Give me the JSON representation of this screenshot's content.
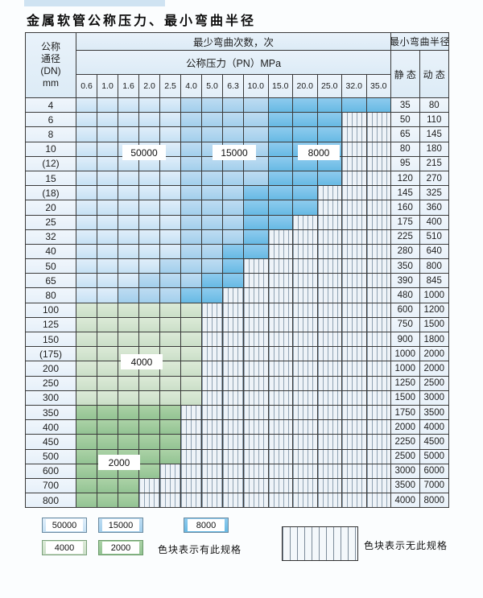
{
  "title": "金属软管公称压力、最小弯曲半径",
  "table": {
    "corner": {
      "line1": "公称",
      "line2": "通径",
      "line3": "(DN)",
      "line4": "mm"
    },
    "bend_header": "最少弯曲次数，次",
    "radius_header": "最小弯曲半径",
    "pressure_header": "公称压力（PN）MPa",
    "static_label": "静 态",
    "dynamic_label": "动 态",
    "pressures": [
      "0.6",
      "1.0",
      "1.6",
      "2.0",
      "2.5",
      "4.0",
      "5.0",
      "6.3",
      "10.0",
      "15.0",
      "20.0",
      "25.0",
      "32.0",
      "35.0"
    ],
    "zone_legend_note": "cells string: A=50000 zone, B=15000 zone, C=8000 zone, g=4000 zone, G=2000 zone, -=no spec (hatched)",
    "rows": [
      {
        "dn": "4",
        "cells": "AAAAABBBBCCCCC",
        "static": "35",
        "dynamic": "80"
      },
      {
        "dn": "6",
        "cells": "AAAAABBBBCCC--",
        "static": "50",
        "dynamic": "110"
      },
      {
        "dn": "8",
        "cells": "AAAAABBBBCCC--",
        "static": "65",
        "dynamic": "145"
      },
      {
        "dn": "10",
        "cells": "AAAAABBBBCCC--",
        "static": "80",
        "dynamic": "180"
      },
      {
        "dn": "(12)",
        "cells": "AAAAABBBBCCC--",
        "static": "95",
        "dynamic": "215"
      },
      {
        "dn": "15",
        "cells": "AAAAABBBBCCC--",
        "static": "120",
        "dynamic": "270"
      },
      {
        "dn": "(18)",
        "cells": "AAAAABBBCCC---",
        "static": "145",
        "dynamic": "325"
      },
      {
        "dn": "20",
        "cells": "AAAAABBBCCC---",
        "static": "160",
        "dynamic": "360"
      },
      {
        "dn": "25",
        "cells": "AAAAABBBCC----",
        "static": "175",
        "dynamic": "400"
      },
      {
        "dn": "32",
        "cells": "AAAAABBBC-----",
        "static": "225",
        "dynamic": "510"
      },
      {
        "dn": "40",
        "cells": "AAAAABBCC-----",
        "static": "280",
        "dynamic": "640"
      },
      {
        "dn": "50",
        "cells": "AAAABBBC------",
        "static": "350",
        "dynamic": "800"
      },
      {
        "dn": "65",
        "cells": "AAABBBCC------",
        "static": "390",
        "dynamic": "845"
      },
      {
        "dn": "80",
        "cells": "AABBBCC-------",
        "static": "480",
        "dynamic": "1000"
      },
      {
        "dn": "100",
        "cells": "gggggg--------",
        "static": "600",
        "dynamic": "1200"
      },
      {
        "dn": "125",
        "cells": "gggggg--------",
        "static": "750",
        "dynamic": "1500"
      },
      {
        "dn": "150",
        "cells": "gggggg--------",
        "static": "900",
        "dynamic": "1800"
      },
      {
        "dn": "(175)",
        "cells": "gggggg--------",
        "static": "1000",
        "dynamic": "2000"
      },
      {
        "dn": "200",
        "cells": "gggggg--------",
        "static": "1000",
        "dynamic": "2000"
      },
      {
        "dn": "250",
        "cells": "gggggg--------",
        "static": "1250",
        "dynamic": "2500"
      },
      {
        "dn": "300",
        "cells": "gggggg--------",
        "static": "1500",
        "dynamic": "3000"
      },
      {
        "dn": "350",
        "cells": "GGGGG---------",
        "static": "1750",
        "dynamic": "3500"
      },
      {
        "dn": "400",
        "cells": "GGGGG---------",
        "static": "2000",
        "dynamic": "4000"
      },
      {
        "dn": "450",
        "cells": "GGGGG---------",
        "static": "2250",
        "dynamic": "4500"
      },
      {
        "dn": "500",
        "cells": "GGGGG---------",
        "static": "2500",
        "dynamic": "5000"
      },
      {
        "dn": "600",
        "cells": "GGGG----------",
        "static": "3000",
        "dynamic": "6000"
      },
      {
        "dn": "700",
        "cells": "GGG-----------",
        "static": "3500",
        "dynamic": "7000"
      },
      {
        "dn": "800",
        "cells": "GGG-----------",
        "static": "4000",
        "dynamic": "8000"
      }
    ]
  },
  "zone_colors": {
    "cycles_50000": "#c6e1f4",
    "cycles_15000": "#a2cfec",
    "cycles_8000": "#67bae4",
    "cycles_4000": "#cbdfc8",
    "cycles_2000": "#93c393"
  },
  "legend": {
    "items": [
      {
        "label": "50000"
      },
      {
        "label": "15000"
      },
      {
        "label": "8000"
      },
      {
        "label": "4000"
      },
      {
        "label": "2000"
      }
    ],
    "has_spec_text": "色块表示有此规格",
    "no_spec_text": "色块表示无此规格"
  }
}
